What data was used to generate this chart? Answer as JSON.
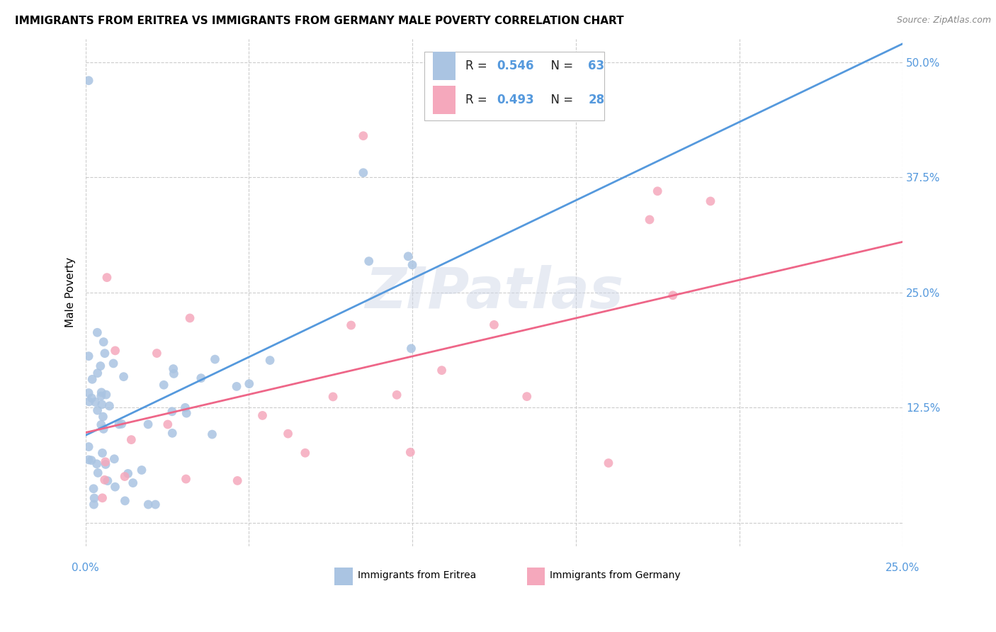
{
  "title": "IMMIGRANTS FROM ERITREA VS IMMIGRANTS FROM GERMANY MALE POVERTY CORRELATION CHART",
  "source": "Source: ZipAtlas.com",
  "ylabel": "Male Poverty",
  "y_ticks": [
    0.0,
    0.125,
    0.25,
    0.375,
    0.5
  ],
  "y_tick_labels": [
    "",
    "12.5%",
    "25.0%",
    "37.5%",
    "50.0%"
  ],
  "x_ticks": [
    0.0,
    0.05,
    0.1,
    0.15,
    0.2,
    0.25
  ],
  "xlim": [
    0.0,
    0.25
  ],
  "ylim": [
    -0.025,
    0.525
  ],
  "eritrea_R": 0.546,
  "eritrea_N": 63,
  "germany_R": 0.493,
  "germany_N": 28,
  "eritrea_color": "#aac4e2",
  "germany_color": "#f5a8bc",
  "eritrea_line_color": "#5599dd",
  "germany_line_color": "#ee6688",
  "eritrea_line_x0": 0.0,
  "eritrea_line_y0": 0.095,
  "eritrea_line_x1": 0.25,
  "eritrea_line_y1": 0.52,
  "germany_line_x0": 0.0,
  "germany_line_y0": 0.098,
  "germany_line_x1": 0.25,
  "germany_line_y1": 0.305,
  "watermark_text": "ZIPatlas",
  "legend_label_eritrea": "Immigrants from Eritrea",
  "legend_label_germany": "Immigrants from Germany"
}
